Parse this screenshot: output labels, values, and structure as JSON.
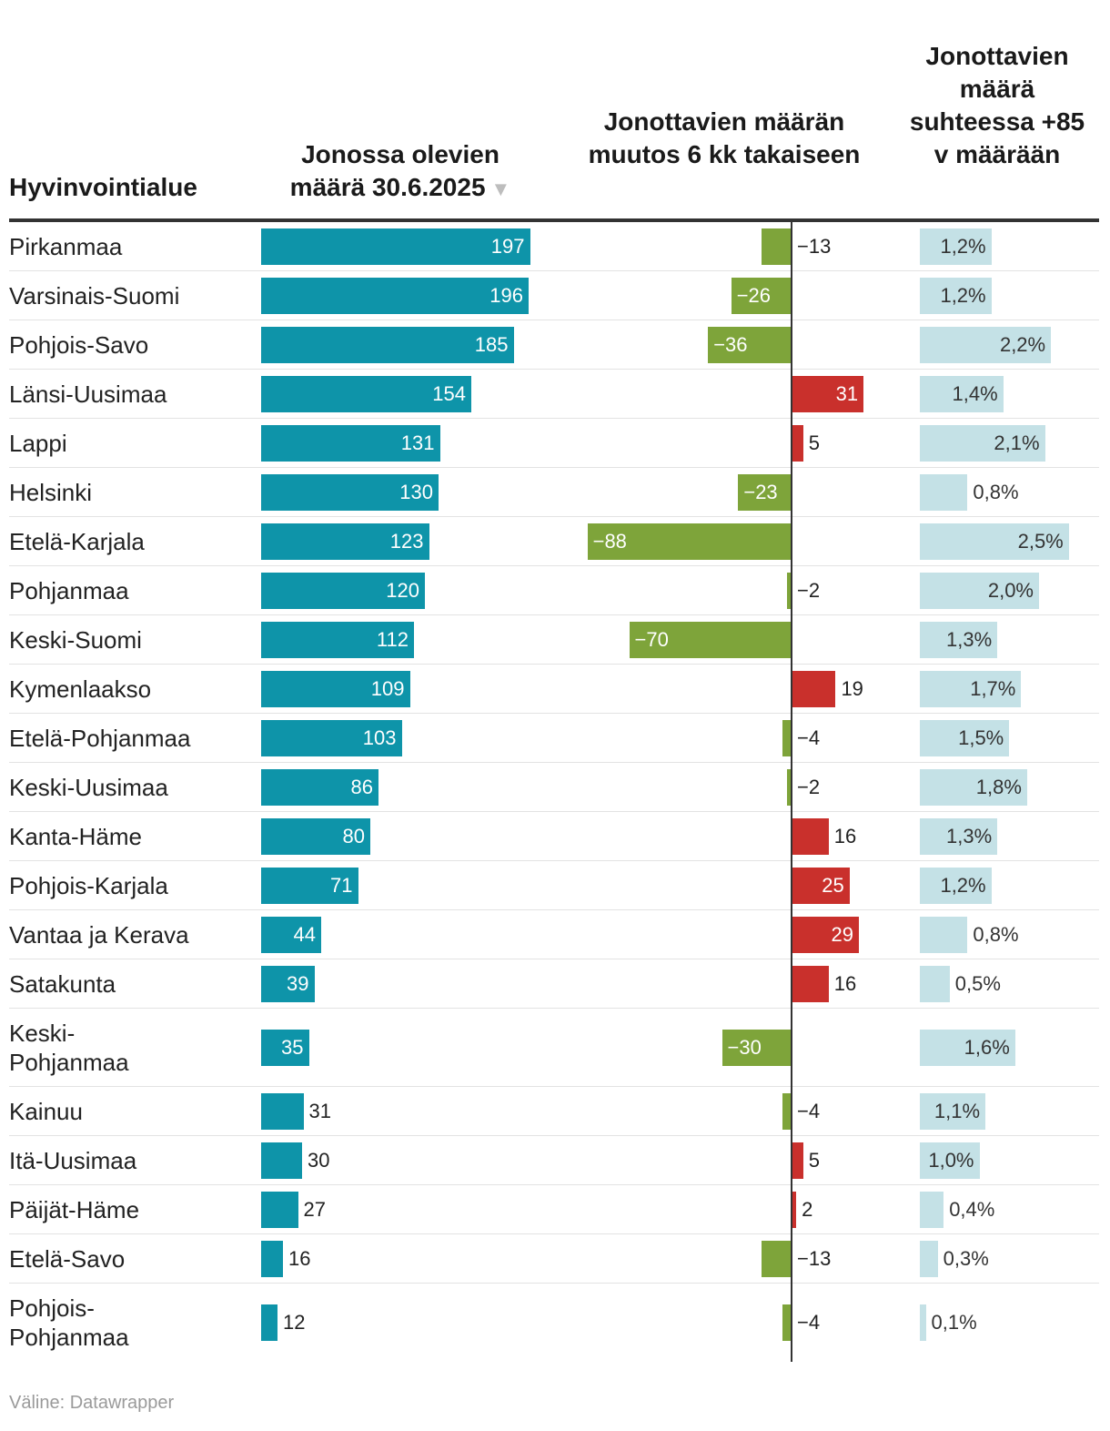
{
  "headers": {
    "region": "Hyvinvointialue",
    "count": "Jonossa olevien määrä 30.6.2025",
    "count_sort_icon": "▼",
    "change": "Jonottavien määrän muutos 6 kk takaiseen",
    "ratio": "Jonottavien määrä suhteessa +85 v määrään"
  },
  "chart_data": {
    "type": "table",
    "columns": [
      "Hyvinvointialue",
      "Jonossa olevien määrä 30.6.2025",
      "Jonottavien määrän muutos 6 kk takaiseen",
      "Jonottavien määrä suhteessa +85 v määrään"
    ],
    "sorted_by": "Jonossa olevien määrä 30.6.2025",
    "sort_direction": "descending",
    "rows": [
      {
        "region": "Pirkanmaa",
        "count": 197,
        "change": -13,
        "ratio": 1.2,
        "ratio_label": "1,2%"
      },
      {
        "region": "Varsinais-Suomi",
        "count": 196,
        "change": -26,
        "ratio": 1.2,
        "ratio_label": "1,2%"
      },
      {
        "region": "Pohjois-Savo",
        "count": 185,
        "change": -36,
        "ratio": 2.2,
        "ratio_label": "2,2%"
      },
      {
        "region": "Länsi-Uusimaa",
        "count": 154,
        "change": 31,
        "ratio": 1.4,
        "ratio_label": "1,4%"
      },
      {
        "region": "Lappi",
        "count": 131,
        "change": 5,
        "ratio": 2.1,
        "ratio_label": "2,1%"
      },
      {
        "region": "Helsinki",
        "count": 130,
        "change": -23,
        "ratio": 0.8,
        "ratio_label": "0,8%"
      },
      {
        "region": "Etelä-Karjala",
        "count": 123,
        "change": -88,
        "ratio": 2.5,
        "ratio_label": "2,5%"
      },
      {
        "region": "Pohjanmaa",
        "count": 120,
        "change": -2,
        "ratio": 2.0,
        "ratio_label": "2,0%"
      },
      {
        "region": "Keski-Suomi",
        "count": 112,
        "change": -70,
        "ratio": 1.3,
        "ratio_label": "1,3%"
      },
      {
        "region": "Kymenlaakso",
        "count": 109,
        "change": 19,
        "ratio": 1.7,
        "ratio_label": "1,7%"
      },
      {
        "region": "Etelä-Pohjanmaa",
        "count": 103,
        "change": -4,
        "ratio": 1.5,
        "ratio_label": "1,5%"
      },
      {
        "region": "Keski-Uusimaa",
        "count": 86,
        "change": -2,
        "ratio": 1.8,
        "ratio_label": "1,8%"
      },
      {
        "region": "Kanta-Häme",
        "count": 80,
        "change": 16,
        "ratio": 1.3,
        "ratio_label": "1,3%"
      },
      {
        "region": "Pohjois-Karjala",
        "count": 71,
        "change": 25,
        "ratio": 1.2,
        "ratio_label": "1,2%"
      },
      {
        "region": "Vantaa ja Kerava",
        "count": 44,
        "change": 29,
        "ratio": 0.8,
        "ratio_label": "0,8%"
      },
      {
        "region": "Satakunta",
        "count": 39,
        "change": 16,
        "ratio": 0.5,
        "ratio_label": "0,5%"
      },
      {
        "region": "Keski-Pohjanmaa",
        "region_lines": [
          "Keski-",
          "Pohjanmaa"
        ],
        "count": 35,
        "change": -30,
        "ratio": 1.6,
        "ratio_label": "1,6%"
      },
      {
        "region": "Kainuu",
        "count": 31,
        "change": -4,
        "ratio": 1.1,
        "ratio_label": "1,1%"
      },
      {
        "region": "Itä-Uusimaa",
        "count": 30,
        "change": 5,
        "ratio": 1.0,
        "ratio_label": "1,0%"
      },
      {
        "region": "Päijät-Häme",
        "count": 27,
        "change": 2,
        "ratio": 0.4,
        "ratio_label": "0,4%"
      },
      {
        "region": "Etelä-Savo",
        "count": 16,
        "change": -13,
        "ratio": 0.3,
        "ratio_label": "0,3%"
      },
      {
        "region": "Pohjois-Pohjanmaa",
        "region_lines": [
          "Pohjois-",
          "Pohjanmaa"
        ],
        "count": 12,
        "change": -4,
        "ratio": 0.1,
        "ratio_label": "0,1%"
      }
    ]
  },
  "colors": {
    "count_bar": "#0e94a9",
    "change_positive": "#c9302c",
    "change_negative": "#7ea43a",
    "ratio_bar": "#c4e1e6"
  },
  "source": "Väline: Datawrapper"
}
